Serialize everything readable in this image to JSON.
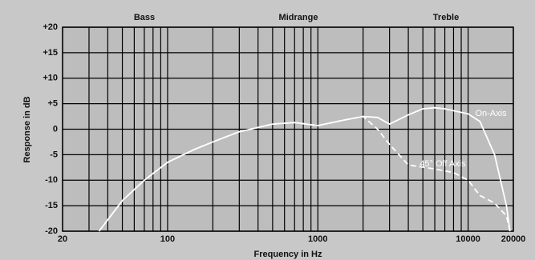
{
  "chart_data": {
    "type": "line",
    "bands": [
      "Bass",
      "Midrange",
      "Treble"
    ],
    "xlabel": "Frequency in Hz",
    "ylabel": "Response in dB",
    "xscale": "log",
    "xlim": [
      20,
      20000
    ],
    "ylim": [
      -20,
      20
    ],
    "xticks": [
      20,
      100,
      1000,
      10000,
      20000
    ],
    "xgrid": [
      30,
      40,
      50,
      60,
      70,
      80,
      90,
      200,
      300,
      400,
      500,
      600,
      700,
      800,
      900,
      2000,
      3000,
      4000,
      5000,
      6000,
      7000,
      8000,
      9000
    ],
    "yticks": [
      {
        "value": 20,
        "label": "+20"
      },
      {
        "value": 15,
        "label": "+15"
      },
      {
        "value": 10,
        "label": "+10"
      },
      {
        "value": 5,
        "label": "+5"
      },
      0,
      -5,
      -10,
      -15,
      -20
    ],
    "grid": true,
    "series": [
      {
        "name": "On-Axis",
        "color": "#ffffff",
        "dash": false,
        "x": [
          35,
          50,
          70,
          100,
          150,
          200,
          300,
          500,
          700,
          1000,
          1500,
          2000,
          2500,
          3000,
          4000,
          5000,
          6000,
          7000,
          10000,
          12000,
          15000,
          18000,
          19000
        ],
        "values": [
          -20,
          -14,
          -10,
          -6.5,
          -4,
          -2.5,
          -0.5,
          1,
          1.3,
          0.7,
          1.8,
          2.5,
          2.3,
          1,
          2.8,
          4,
          4.2,
          4,
          3,
          1.5,
          -5,
          -15,
          -20
        ]
      },
      {
        "name": "45° Off Axis",
        "color": "#ffffff",
        "dash": true,
        "x": [
          35,
          50,
          70,
          100,
          150,
          200,
          300,
          500,
          700,
          1000,
          1500,
          2000,
          2500,
          3000,
          4000,
          6000,
          8000,
          10000,
          12000,
          15000,
          18000,
          19000
        ],
        "values": [
          -20,
          -14,
          -10,
          -6.5,
          -4,
          -2.5,
          -0.5,
          1,
          1.3,
          0.7,
          1.8,
          2.5,
          0,
          -3,
          -7,
          -7.8,
          -8.5,
          -10,
          -13,
          -14.5,
          -17,
          -20
        ]
      }
    ]
  }
}
